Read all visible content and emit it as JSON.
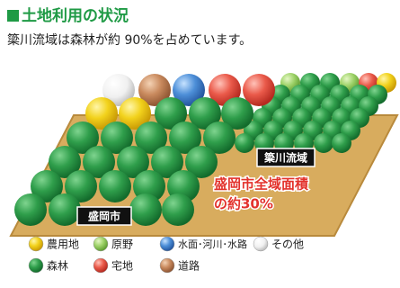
{
  "header": {
    "title": "土地利用の状況",
    "subtitle": "簗川流域は森林が約 90%を占めています。"
  },
  "illustration": {
    "yanagawa_label": "簗川流域",
    "morioka_label": "盛岡市",
    "note_line1": "盛岡市全域面積",
    "note_line2": "の約30%"
  },
  "legend": {
    "items": [
      "農用地",
      "原野",
      "水面･河川･水路",
      "その他",
      "森林",
      "宅地",
      "道路"
    ]
  }
}
